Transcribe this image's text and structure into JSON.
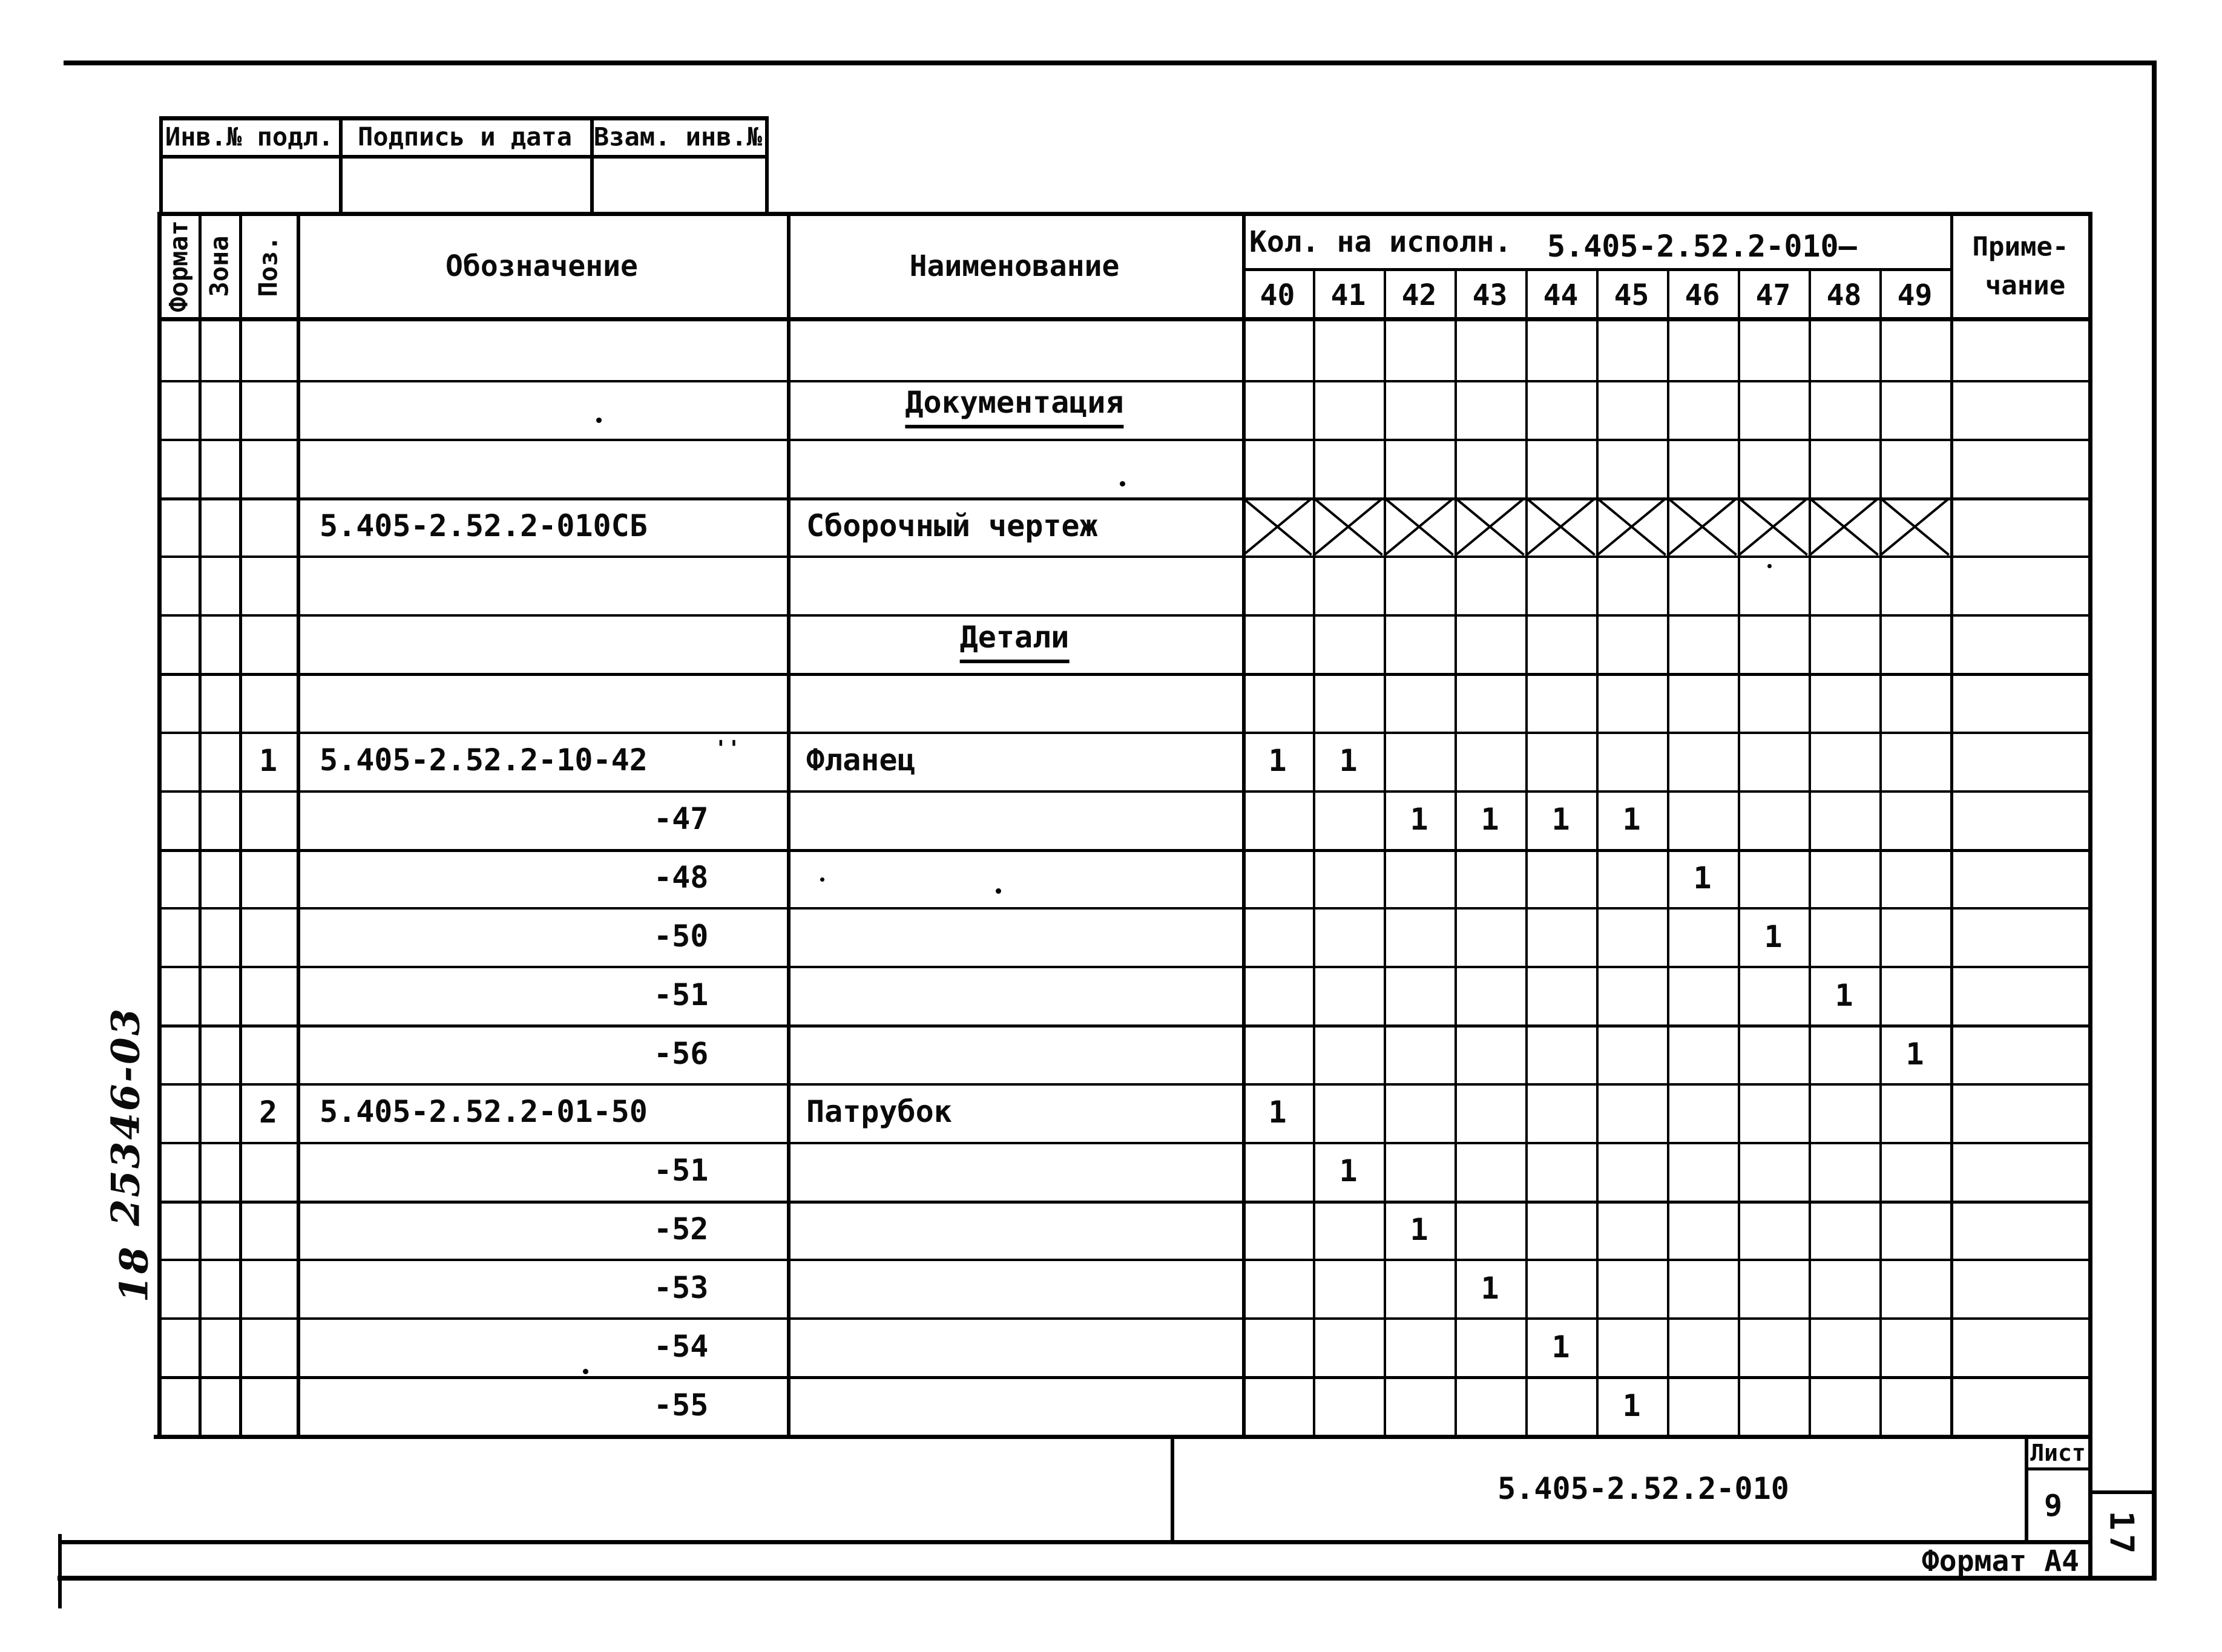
{
  "page": {
    "stamp_vertical_top": "25346-03",
    "stamp_vertical_bottom": "18",
    "side_sheet_number": "17",
    "format_label": "Формат А4"
  },
  "inv_block": {
    "cells": [
      "Инв.№ подл.",
      "Подпись и дата",
      "Взам. инв.№"
    ]
  },
  "spec_table": {
    "col_format": "Формат",
    "col_zone": "Зона",
    "col_pos": "Поз.",
    "col_designation": "Обозначение",
    "col_name": "Наименование",
    "qty_band_label": "Кол. на исполн.",
    "qty_band_doc": "5.405-2.52.2-010—",
    "qty_columns": [
      "40",
      "41",
      "42",
      "43",
      "44",
      "45",
      "46",
      "47",
      "48",
      "49"
    ],
    "col_note_line1": "Приме-",
    "col_note_line2": "чание",
    "rows": [
      {},
      {
        "name": "Документация",
        "name_center": true,
        "name_underline": true
      },
      {},
      {
        "designation": "5.405-2.52.2-010СБ",
        "name": "Сборочный чертеж",
        "x_row": true
      },
      {},
      {
        "name": "Детали",
        "name_center": true,
        "name_underline": true
      },
      {},
      {
        "pos": "1",
        "designation": "5.405-2.52.2-10-42",
        "name": "Фланец",
        "mark": "''",
        "qty": {
          "40": "1",
          "41": "1"
        }
      },
      {
        "designation": "-47",
        "indent": true,
        "qty": {
          "42": "1",
          "43": "1",
          "44": "1",
          "45": "1"
        }
      },
      {
        "designation": "-48",
        "indent": true,
        "qty": {
          "46": "1"
        }
      },
      {
        "designation": "-50",
        "indent": true,
        "qty": {
          "47": "1"
        }
      },
      {
        "designation": "-51",
        "indent": true,
        "qty": {
          "48": "1"
        }
      },
      {
        "designation": "-56",
        "indent": true,
        "qty": {
          "49": "1"
        }
      },
      {
        "pos": "2",
        "designation": "5.405-2.52.2-01-50",
        "name": "Патрубок",
        "qty": {
          "40": "1"
        }
      },
      {
        "designation": "-51",
        "indent": true,
        "qty": {
          "41": "1"
        }
      },
      {
        "designation": "-52",
        "indent": true,
        "qty": {
          "42": "1"
        }
      },
      {
        "designation": "-53",
        "indent": true,
        "qty": {
          "43": "1"
        }
      },
      {
        "designation": "-54",
        "indent": true,
        "qty": {
          "44": "1"
        }
      },
      {
        "designation": "-55",
        "indent": true,
        "qty": {
          "45": "1"
        }
      }
    ]
  },
  "title_block": {
    "doc_number": "5.405-2.52.2-010",
    "sheet_label": "Лист",
    "sheet_number": "9"
  }
}
